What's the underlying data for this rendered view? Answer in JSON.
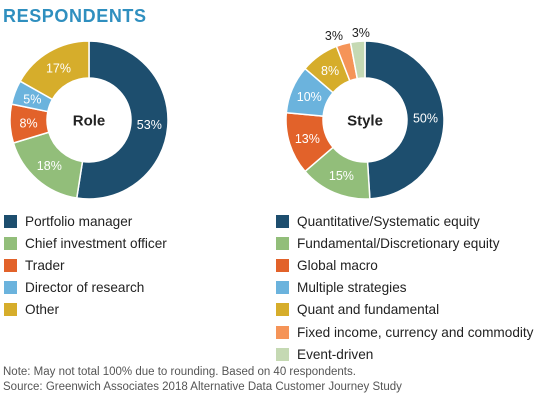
{
  "header": {
    "title": "RESPONDENTS"
  },
  "chart_data": [
    {
      "type": "pie",
      "center_label": "Role",
      "categories": [
        "Portfolio manager",
        "Chief investment officer",
        "Trader",
        "Director of research",
        "Other"
      ],
      "values": [
        53,
        18,
        8,
        5,
        17
      ],
      "labels": [
        "53%",
        "18%",
        "8%",
        "5%",
        "17%"
      ],
      "colors": [
        "#1d4e6e",
        "#92be7a",
        "#e2622a",
        "#6bb3dd",
        "#d6ad2b"
      ],
      "label_colors": [
        "#ffffff",
        "#ffffff",
        "#ffffff",
        "#ffffff",
        "#ffffff"
      ],
      "legend_position": "bottom"
    },
    {
      "type": "pie",
      "center_label": "Style",
      "categories": [
        "Quantitative/Systematic equity",
        "Fundamental/Discretionary equity",
        "Global macro",
        "Multiple strategies",
        "Quant and fundamental",
        "Fixed income, currency and commodity",
        "Event-driven"
      ],
      "values": [
        50,
        15,
        13,
        10,
        8,
        3,
        3
      ],
      "labels": [
        "50%",
        "15%",
        "13%",
        "10%",
        "8%",
        "3%",
        "3%"
      ],
      "colors": [
        "#1d4e6e",
        "#92be7a",
        "#e2622a",
        "#6bb3dd",
        "#d6ad2b",
        "#f59458",
        "#c5d9b3"
      ],
      "label_colors": [
        "#ffffff",
        "#ffffff",
        "#ffffff",
        "#ffffff",
        "#ffffff",
        "#222222",
        "#222222"
      ],
      "legend_position": "bottom"
    }
  ],
  "notes": [
    "Note: May not total 100% due to rounding. Based on 40 respondents.",
    "Source: Greenwich Associates 2018 Alternative Data Customer Journey Study"
  ]
}
